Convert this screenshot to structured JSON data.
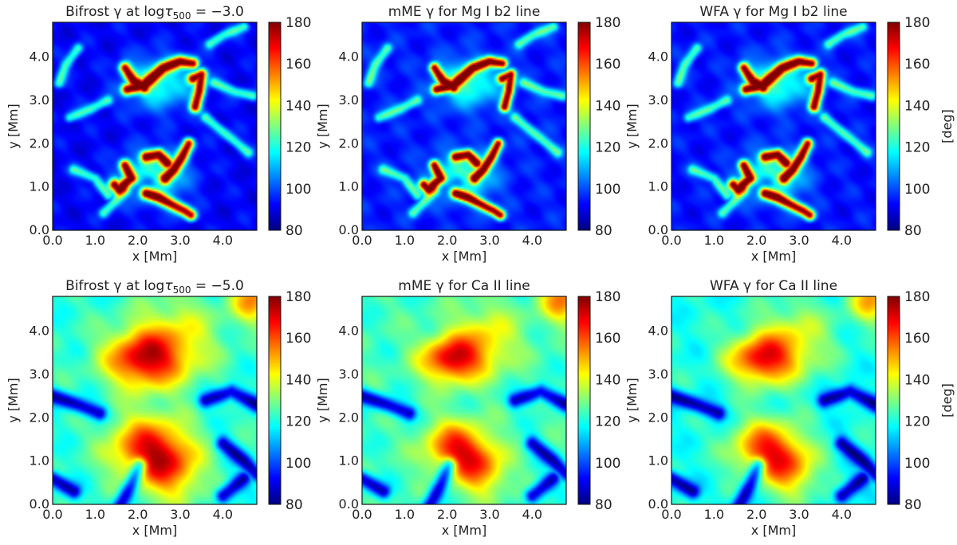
{
  "figure": {
    "colorbar_unit": "[deg]",
    "colormap": "jet",
    "colors": {
      "jet": [
        "#00007f",
        "#0000ff",
        "#007fff",
        "#00ffff",
        "#7fff7f",
        "#ffff00",
        "#ff7f00",
        "#ff0000",
        "#7f0000"
      ]
    }
  },
  "chart_data": [
    {
      "type": "heatmap",
      "title": "Bifrost γ at logτ500 = −3.0",
      "title_parts": [
        "Bifrost γ at log",
        "τ",
        "500",
        " = −3.0"
      ],
      "xlabel": "x [Mm]",
      "ylabel": "y [Mm]",
      "xlim": [
        0,
        4.8
      ],
      "ylim": [
        0,
        4.8
      ],
      "xticks": [
        "0.0",
        "1.0",
        "2.0",
        "3.0",
        "4.0"
      ],
      "yticks": [
        "0.0",
        "1.0",
        "2.0",
        "3.0",
        "4.0"
      ],
      "colorbar": {
        "min": 80,
        "max": 180,
        "ticks": [
          "80",
          "100",
          "120",
          "140",
          "160",
          "180"
        ]
      },
      "field": "strong_loops",
      "background_value": 92,
      "blur": 1.0
    },
    {
      "type": "heatmap",
      "title": "mME γ for Mg I b2 line",
      "xlabel": "x [Mm]",
      "ylabel": "y [Mm]",
      "xlim": [
        0,
        4.8
      ],
      "ylim": [
        0,
        4.8
      ],
      "xticks": [
        "0.0",
        "1.0",
        "2.0",
        "3.0",
        "4.0"
      ],
      "yticks": [
        "0.0",
        "1.0",
        "2.0",
        "3.0",
        "4.0"
      ],
      "colorbar": {
        "min": 80,
        "max": 180,
        "ticks": [
          "80",
          "100",
          "120",
          "140",
          "160",
          "180"
        ]
      },
      "field": "strong_loops",
      "background_value": 95,
      "blur": 0.9
    },
    {
      "type": "heatmap",
      "title": "WFA γ for Mg I b2 line",
      "xlabel": "x [Mm]",
      "ylabel": "y [Mm]",
      "xlim": [
        0,
        4.8
      ],
      "ylim": [
        0,
        4.8
      ],
      "xticks": [
        "0.0",
        "1.0",
        "2.0",
        "3.0",
        "4.0"
      ],
      "yticks": [
        "0.0",
        "1.0",
        "2.0",
        "3.0",
        "4.0"
      ],
      "colorbar": {
        "min": 80,
        "max": 180,
        "ticks": [
          "80",
          "100",
          "120",
          "140",
          "160",
          "180"
        ]
      },
      "field": "strong_loops",
      "background_value": 94,
      "blur": 0.95
    },
    {
      "type": "heatmap",
      "title": "Bifrost γ at logτ500 = −5.0",
      "title_parts": [
        "Bifrost γ at log",
        "τ",
        "500",
        " = −5.0"
      ],
      "xlabel": "x [Mm]",
      "ylabel": "y [Mm]",
      "xlim": [
        0,
        4.8
      ],
      "ylim": [
        0,
        4.8
      ],
      "xticks": [
        "0.0",
        "1.0",
        "2.0",
        "3.0",
        "4.0"
      ],
      "yticks": [
        "0.0",
        "1.0",
        "2.0",
        "3.0",
        "4.0"
      ],
      "colorbar": {
        "min": 80,
        "max": 180,
        "ticks": [
          "80",
          "100",
          "120",
          "140",
          "160",
          "180"
        ]
      },
      "field": "diffuse",
      "background_value": 122,
      "blur": 1.5
    },
    {
      "type": "heatmap",
      "title": "mME γ for Ca II line",
      "xlabel": "x [Mm]",
      "ylabel": "y [Mm]",
      "xlim": [
        0,
        4.8
      ],
      "ylim": [
        0,
        4.8
      ],
      "xticks": [
        "0.0",
        "1.0",
        "2.0",
        "3.0",
        "4.0"
      ],
      "yticks": [
        "0.0",
        "1.0",
        "2.0",
        "3.0",
        "4.0"
      ],
      "colorbar": {
        "min": 80,
        "max": 180,
        "ticks": [
          "80",
          "100",
          "120",
          "140",
          "160",
          "180"
        ]
      },
      "field": "diffuse",
      "background_value": 124,
      "blur": 1.2
    },
    {
      "type": "heatmap",
      "title": "WFA γ for Ca II line",
      "xlabel": "x [Mm]",
      "ylabel": "y [Mm]",
      "xlim": [
        0,
        4.8
      ],
      "ylim": [
        0,
        4.8
      ],
      "xticks": [
        "0.0",
        "1.0",
        "2.0",
        "3.0",
        "4.0"
      ],
      "yticks": [
        "0.0",
        "1.0",
        "2.0",
        "3.0",
        "4.0"
      ],
      "colorbar": {
        "min": 80,
        "max": 180,
        "ticks": [
          "80",
          "100",
          "120",
          "140",
          "160",
          "180"
        ]
      },
      "field": "diffuse",
      "background_value": 120,
      "blur": 1.3
    }
  ]
}
